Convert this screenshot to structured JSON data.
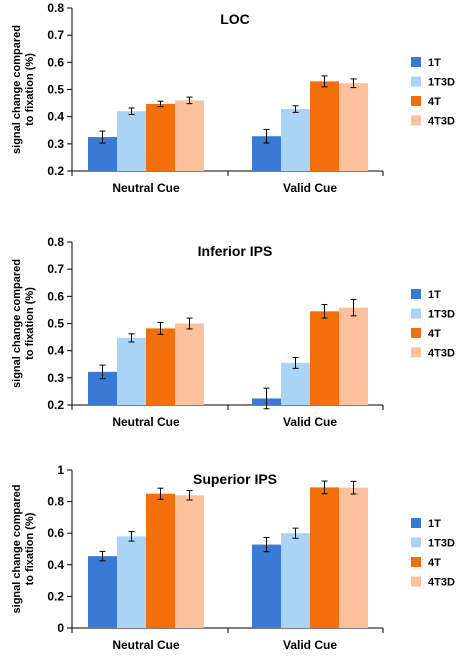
{
  "chart_data": [
    {
      "type": "bar",
      "title": "LOC",
      "ylabel": "signal change compared to fixation (%)",
      "categories": [
        "Neutral Cue",
        "Valid Cue"
      ],
      "ylim": [
        0.2,
        0.8
      ],
      "yticks": [
        "0.2",
        "0.3",
        "0.4",
        "0.5",
        "0.6",
        "0.7",
        "0.8"
      ],
      "legend_position": "right",
      "series": [
        {
          "name": "1T",
          "color": "#3a7ad4",
          "values": [
            0.325,
            0.328
          ],
          "errors": [
            0.022,
            0.025
          ]
        },
        {
          "name": "1T3D",
          "color": "#a9d4f6",
          "values": [
            0.42,
            0.428
          ],
          "errors": [
            0.012,
            0.012
          ]
        },
        {
          "name": "4T",
          "color": "#f26f0c",
          "values": [
            0.447,
            0.53
          ],
          "errors": [
            0.01,
            0.02
          ]
        },
        {
          "name": "4T3D",
          "color": "#fac19c",
          "values": [
            0.46,
            0.523
          ],
          "errors": [
            0.012,
            0.016
          ]
        }
      ]
    },
    {
      "type": "bar",
      "title": "Inferior IPS",
      "ylabel": "signal change compared to fixation (%)",
      "categories": [
        "Neutral Cue",
        "Valid Cue"
      ],
      "ylim": [
        0.2,
        0.8
      ],
      "yticks": [
        "0.2",
        "0.3",
        "0.4",
        "0.5",
        "0.6",
        "0.7",
        "0.8"
      ],
      "legend_position": "right",
      "series": [
        {
          "name": "1T",
          "color": "#3a7ad4",
          "values": [
            0.322,
            0.224
          ],
          "errors": [
            0.025,
            0.038
          ]
        },
        {
          "name": "1T3D",
          "color": "#a9d4f6",
          "values": [
            0.447,
            0.355
          ],
          "errors": [
            0.015,
            0.02
          ]
        },
        {
          "name": "4T",
          "color": "#f26f0c",
          "values": [
            0.482,
            0.545
          ],
          "errors": [
            0.022,
            0.025
          ]
        },
        {
          "name": "4T3D",
          "color": "#fac19c",
          "values": [
            0.5,
            0.558
          ],
          "errors": [
            0.02,
            0.03
          ]
        }
      ]
    },
    {
      "type": "bar",
      "title": "Superior IPS",
      "ylabel": "signal change compared to fixation (%)",
      "categories": [
        "Neutral Cue",
        "Valid Cue"
      ],
      "ylim": [
        0,
        1
      ],
      "yticks": [
        "0",
        "0.2",
        "0.4",
        "0.6",
        "0.8",
        "1"
      ],
      "legend_position": "right",
      "series": [
        {
          "name": "1T",
          "color": "#3a7ad4",
          "values": [
            0.455,
            0.528
          ],
          "errors": [
            0.03,
            0.045
          ]
        },
        {
          "name": "1T3D",
          "color": "#a9d4f6",
          "values": [
            0.58,
            0.6
          ],
          "errors": [
            0.03,
            0.032
          ]
        },
        {
          "name": "4T",
          "color": "#f26f0c",
          "values": [
            0.85,
            0.89
          ],
          "errors": [
            0.035,
            0.04
          ]
        },
        {
          "name": "4T3D",
          "color": "#fac19c",
          "values": [
            0.84,
            0.888
          ],
          "errors": [
            0.03,
            0.04
          ]
        }
      ]
    }
  ]
}
